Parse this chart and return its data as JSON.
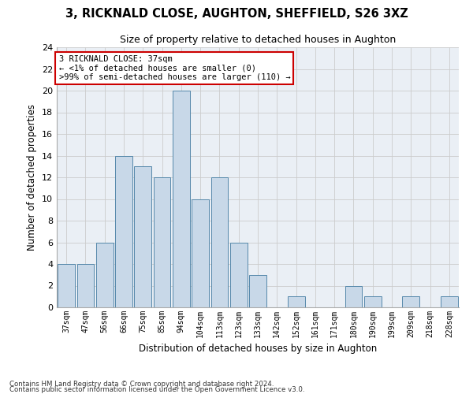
{
  "title_line1": "3, RICKNALD CLOSE, AUGHTON, SHEFFIELD, S26 3XZ",
  "title_line2": "Size of property relative to detached houses in Aughton",
  "xlabel": "Distribution of detached houses by size in Aughton",
  "ylabel": "Number of detached properties",
  "categories": [
    "37sqm",
    "47sqm",
    "56sqm",
    "66sqm",
    "75sqm",
    "85sqm",
    "94sqm",
    "104sqm",
    "113sqm",
    "123sqm",
    "133sqm",
    "142sqm",
    "152sqm",
    "161sqm",
    "171sqm",
    "180sqm",
    "190sqm",
    "199sqm",
    "209sqm",
    "218sqm",
    "228sqm"
  ],
  "values": [
    4,
    4,
    6,
    14,
    13,
    12,
    20,
    10,
    12,
    6,
    3,
    0,
    1,
    0,
    0,
    2,
    1,
    0,
    1,
    0,
    1
  ],
  "bar_color": "#c8d8e8",
  "bar_edge_color": "#5588aa",
  "ylim": [
    0,
    24
  ],
  "yticks": [
    0,
    2,
    4,
    6,
    8,
    10,
    12,
    14,
    16,
    18,
    20,
    22,
    24
  ],
  "annotation_title": "3 RICKNALD CLOSE: 37sqm",
  "annotation_line1": "← <1% of detached houses are smaller (0)",
  "annotation_line2": ">99% of semi-detached houses are larger (110) →",
  "annotation_box_color": "#ffffff",
  "annotation_edge_color": "#cc0000",
  "grid_color": "#cccccc",
  "bg_color": "#eaeff5",
  "footer1": "Contains HM Land Registry data © Crown copyright and database right 2024.",
  "footer2": "Contains public sector information licensed under the Open Government Licence v3.0."
}
